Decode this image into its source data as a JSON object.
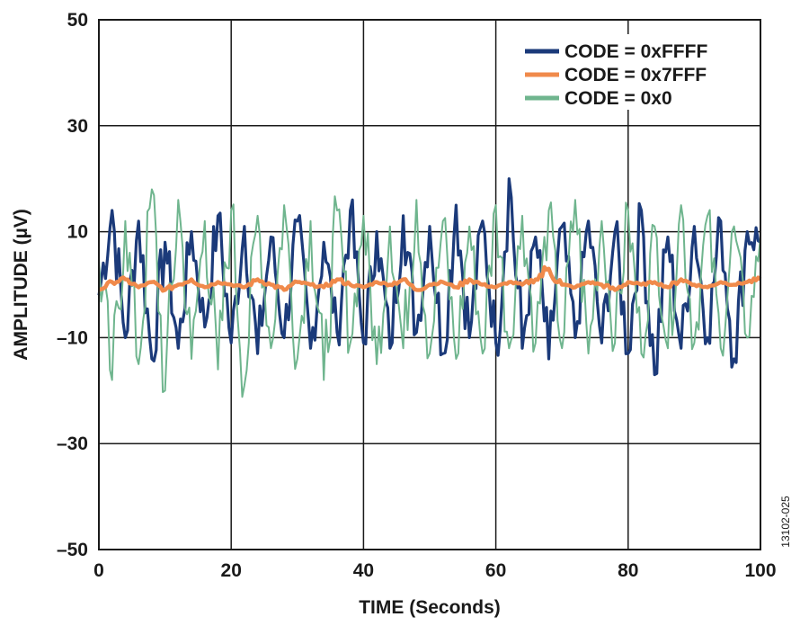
{
  "chart_data": {
    "type": "line",
    "title": "",
    "xlabel": "TIME (Seconds)",
    "ylabel": "AMPLITUDE (µV)",
    "xlim": [
      0,
      100
    ],
    "ylim": [
      -50,
      50
    ],
    "x_ticks": [
      0,
      20,
      40,
      60,
      80,
      100
    ],
    "y_ticks": [
      50,
      30,
      10,
      -10,
      -30,
      -50
    ],
    "y_tick_labels": [
      "50",
      "30",
      "10",
      "–10",
      "–30",
      "–50"
    ],
    "grid": true,
    "legend_position": "top-right",
    "figure_id": "13102-025",
    "series": [
      {
        "name": "CODE = 0xFFFF",
        "color": "#1b3a7a",
        "x": [
          0,
          2,
          4,
          6,
          8,
          10,
          12,
          14,
          16,
          18,
          20,
          22,
          24,
          26,
          28,
          30,
          32,
          34,
          36,
          38,
          40,
          42,
          44,
          46,
          48,
          50,
          52,
          54,
          56,
          58,
          60,
          62,
          64,
          66,
          68,
          70,
          72,
          74,
          76,
          78,
          80,
          82,
          84,
          86,
          88,
          90,
          92,
          94,
          96,
          98,
          100
        ],
        "values": [
          -2,
          14,
          -10,
          12,
          -14,
          8,
          -12,
          10,
          -8,
          13,
          -11,
          11,
          -13,
          9,
          -10,
          12,
          -12,
          8,
          -9,
          14,
          -11,
          10,
          -12,
          13,
          -9,
          11,
          -13,
          15,
          -10,
          12,
          -11,
          20,
          -12,
          9,
          -14,
          11,
          -10,
          12,
          -11,
          10,
          -13,
          14,
          -17,
          9,
          -12,
          11,
          -10,
          12,
          -14,
          10,
          8
        ]
      },
      {
        "name": "CODE = 0x7FFF",
        "color": "#f08a4b",
        "x": [
          0,
          2,
          4,
          6,
          8,
          10,
          12,
          14,
          16,
          18,
          20,
          22,
          24,
          26,
          28,
          30,
          32,
          34,
          36,
          38,
          40,
          42,
          44,
          46,
          48,
          50,
          52,
          54,
          56,
          58,
          60,
          62,
          64,
          66,
          68,
          70,
          72,
          74,
          76,
          78,
          80,
          82,
          84,
          86,
          88,
          90,
          92,
          94,
          96,
          98,
          100
        ],
        "values": [
          -1,
          0.5,
          1,
          -0.5,
          0.5,
          -1,
          0,
          1,
          -0.5,
          0.5,
          0,
          -0.5,
          1,
          0,
          -1,
          0.5,
          0,
          -0.5,
          1,
          0,
          -0.5,
          0.5,
          0,
          1,
          -1,
          0,
          0.5,
          -0.5,
          1,
          0,
          -0.5,
          0.5,
          0,
          1,
          3,
          0,
          -0.5,
          0.5,
          0,
          -1,
          0.5,
          0,
          0.5,
          -0.5,
          1,
          0,
          -0.5,
          0.5,
          0,
          0.5,
          1
        ]
      },
      {
        "name": "CODE = 0x0",
        "color": "#6fb58e",
        "x": [
          0,
          2,
          4,
          6,
          8,
          10,
          12,
          14,
          16,
          18,
          20,
          22,
          24,
          26,
          28,
          30,
          32,
          34,
          36,
          38,
          40,
          42,
          44,
          46,
          48,
          50,
          52,
          54,
          56,
          58,
          60,
          62,
          64,
          66,
          68,
          70,
          72,
          74,
          76,
          78,
          80,
          82,
          84,
          86,
          88,
          90,
          92,
          94,
          96,
          98,
          100
        ],
        "values": [
          5,
          -18,
          12,
          -15,
          18,
          -20,
          16,
          -14,
          12,
          -16,
          14,
          -19,
          13,
          -12,
          15,
          -14,
          12,
          -18,
          14,
          -11,
          13,
          -15,
          11,
          -12,
          16,
          -13,
          12,
          -14,
          11,
          -13,
          15,
          -12,
          13,
          -11,
          14,
          -12,
          16,
          -13,
          12,
          -11,
          14,
          -13,
          11,
          -12,
          15,
          -11,
          13,
          -12,
          11,
          -10,
          9
        ]
      }
    ]
  }
}
